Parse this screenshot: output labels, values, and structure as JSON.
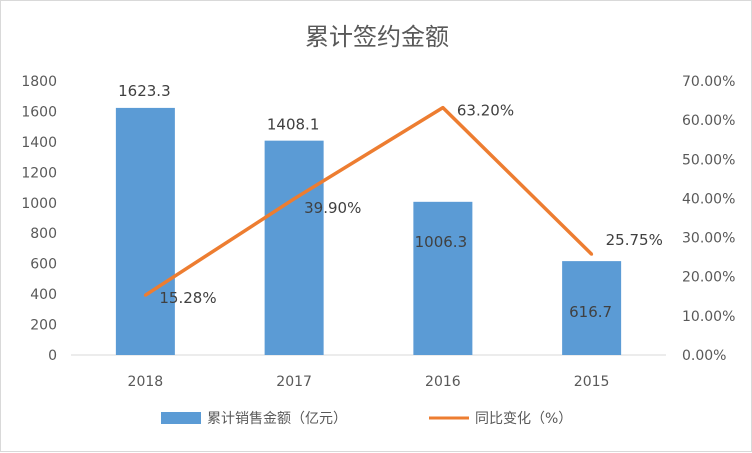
{
  "chart_data": {
    "type": "bar+line",
    "title": "累计签约金额",
    "categories": [
      "2018",
      "2017",
      "2016",
      "2015"
    ],
    "series": [
      {
        "name": "累计销售金额（亿元）",
        "type": "bar",
        "axis": "left",
        "color": "#5B9BD5",
        "values": [
          1623.3,
          1408.1,
          1006.3,
          616.7
        ],
        "labels": [
          "1623.3",
          "1408.1",
          "1006.3",
          "616.7"
        ]
      },
      {
        "name": "同比变化（%）",
        "type": "line",
        "axis": "right",
        "color": "#ED7D31",
        "values": [
          15.28,
          39.9,
          63.2,
          25.75
        ],
        "labels": [
          "15.28%",
          "39.90%",
          "63.20%",
          "25.75%"
        ]
      }
    ],
    "left_axis": {
      "ylim": [
        0,
        1800
      ],
      "ticks": [
        "0",
        "200",
        "400",
        "600",
        "800",
        "1000",
        "1200",
        "1400",
        "1600",
        "1800"
      ]
    },
    "right_axis": {
      "ylim": [
        0,
        70
      ],
      "ticks": [
        "0.00%",
        "10.00%",
        "20.00%",
        "30.00%",
        "40.00%",
        "50.00%",
        "60.00%",
        "70.00%"
      ]
    },
    "grid": false,
    "legend": "bottom"
  }
}
